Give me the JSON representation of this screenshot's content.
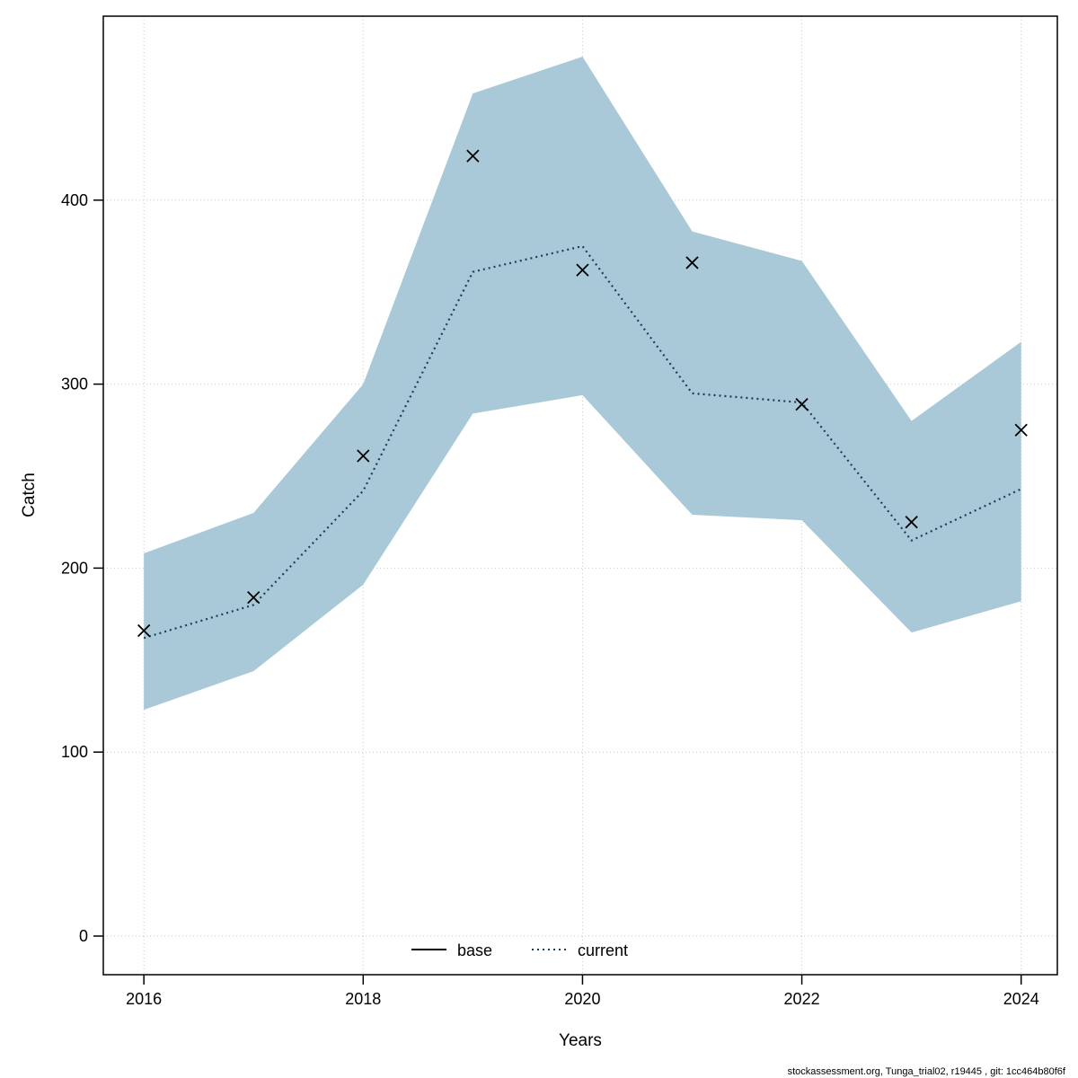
{
  "footer": "stockassessment.org, Tunga_trial02, r19445 , git: 1cc464b80f6f",
  "chart_data": {
    "type": "line",
    "title": "",
    "xlabel": "Years",
    "ylabel": "Catch",
    "x": [
      2016,
      2017,
      2018,
      2019,
      2020,
      2021,
      2022,
      2023,
      2024
    ],
    "series": [
      {
        "name": "current",
        "style": "dotted",
        "color": "#12425c",
        "values": [
          162,
          180,
          242,
          361,
          375,
          295,
          290,
          215,
          243
        ]
      },
      {
        "name": "observations",
        "style": "x-markers",
        "color": "#000000",
        "values": [
          166,
          184,
          261,
          424,
          362,
          366,
          289,
          225,
          275
        ]
      }
    ],
    "band": {
      "name": "current-confidence-band",
      "color": "#a9c9d9",
      "upper": [
        208,
        230,
        300,
        458,
        478,
        383,
        367,
        280,
        323
      ],
      "lower": [
        123,
        144,
        191,
        284,
        294,
        229,
        226,
        165,
        182
      ]
    },
    "legend": [
      {
        "label": "base",
        "line": "solid",
        "color": "#000000"
      },
      {
        "label": "current",
        "line": "dotted",
        "color": "#12425c"
      }
    ],
    "legend_position": "bottom-center",
    "x_ticks": [
      2016,
      2018,
      2020,
      2022,
      2024
    ],
    "y_ticks": [
      0,
      100,
      200,
      300,
      400
    ],
    "xlim": [
      2015.63,
      2024.33
    ],
    "ylim": [
      -21,
      500
    ],
    "grid": true,
    "grid_color": "#c8c8c8",
    "axis_color": "#000000"
  }
}
